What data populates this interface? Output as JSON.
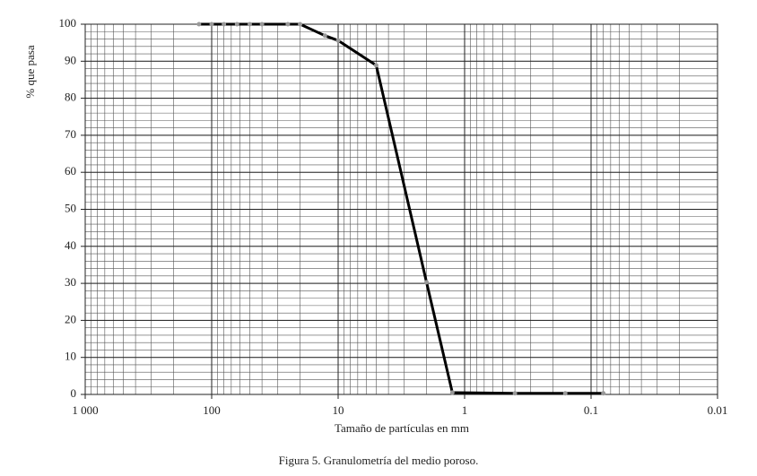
{
  "chart_data": {
    "type": "line",
    "x_label": "Tamaño de partículas en mm",
    "y_label": "% que pasa",
    "caption": "Figura 5. Granulometría del medio poroso.",
    "xscale": "log",
    "grid": true,
    "minor_grid": true,
    "x": [
      126,
      100,
      80,
      63,
      50,
      40,
      25,
      20,
      12.7,
      10,
      5,
      2,
      1.25,
      0.4,
      0.16,
      0.08
    ],
    "series": [
      {
        "name": "Granulometría",
        "color": "#000000",
        "marker_color": "#999999",
        "values": [
          100,
          100,
          100,
          100,
          100,
          100,
          100,
          100,
          96.9,
          95.6,
          88.9,
          30.3,
          0.5,
          0.3,
          0.3,
          0.3
        ]
      }
    ],
    "xlim": [
      1000,
      0.01
    ],
    "xticks": [
      {
        "value": 1000,
        "label": "1 000"
      },
      100,
      10,
      1,
      0.1,
      0.01
    ],
    "ylim": [
      0,
      100
    ],
    "yticks": [
      0,
      10,
      20,
      30,
      40,
      50,
      60,
      70,
      80,
      90,
      100
    ]
  }
}
